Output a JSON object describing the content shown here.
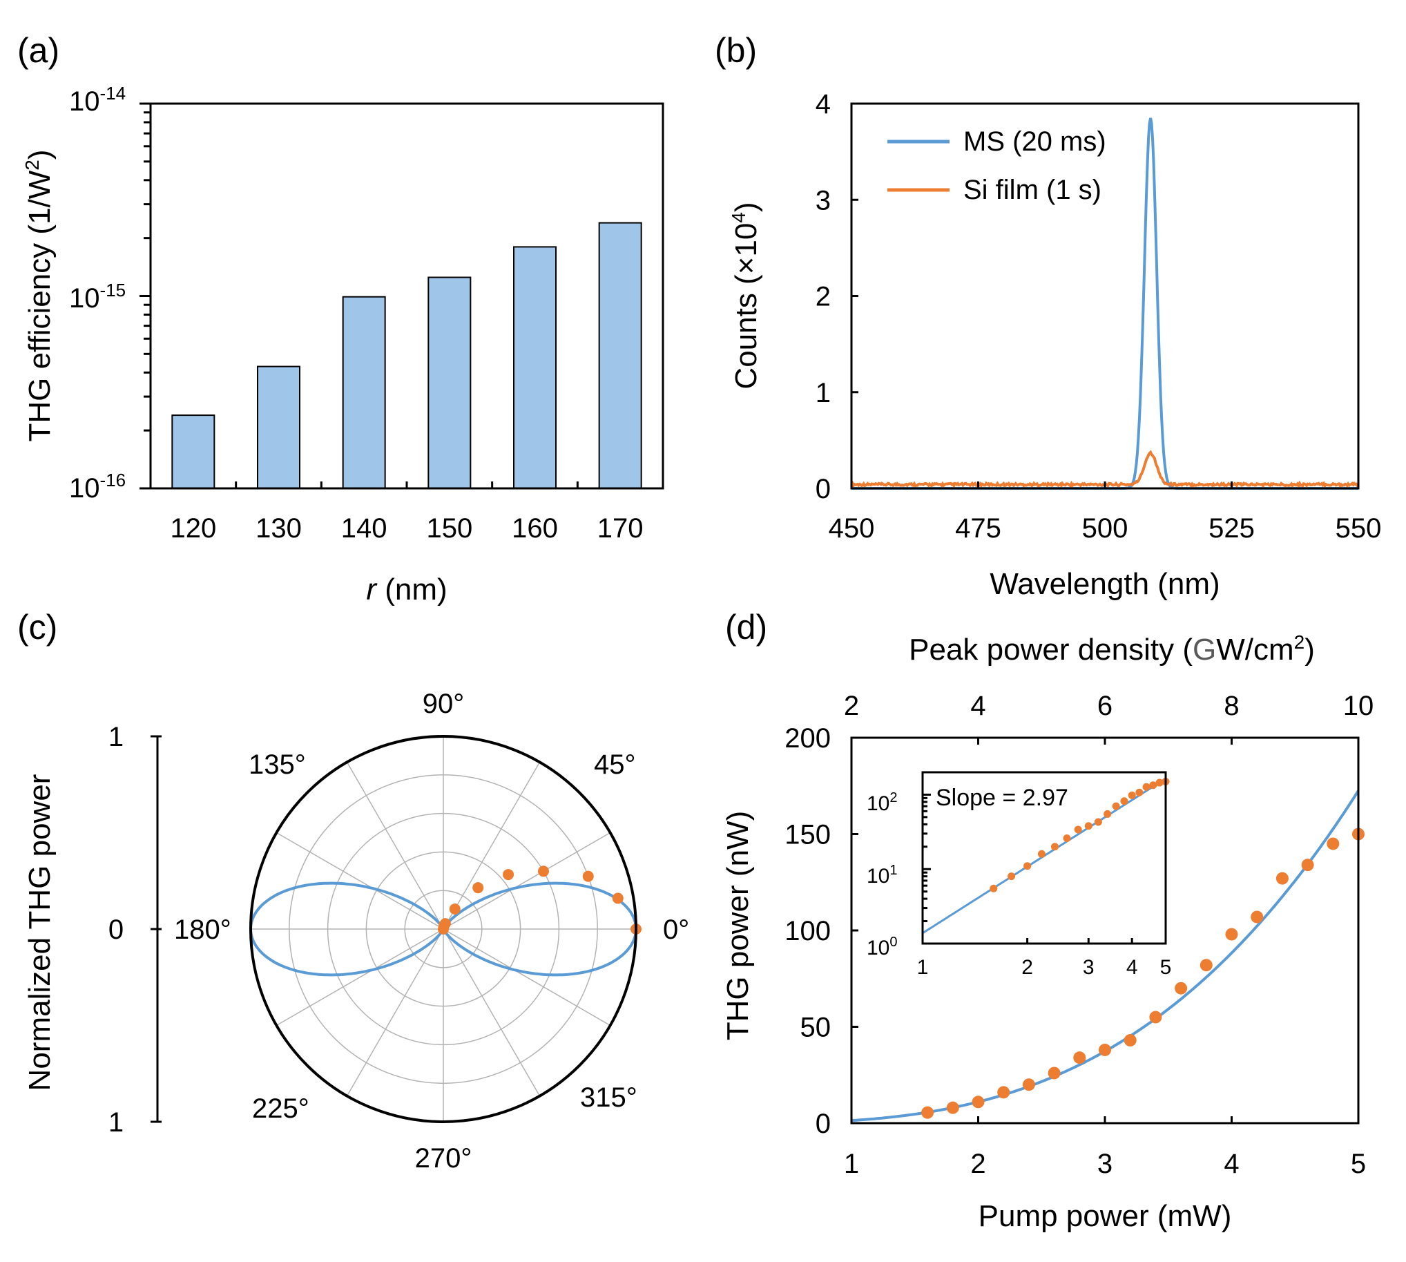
{
  "chart_data": [
    {
      "panel": "(a)",
      "type": "bar",
      "scale": "log",
      "categories": [
        "120",
        "130",
        "140",
        "150",
        "160",
        "170"
      ],
      "values": [
        2.4e-16,
        4.3e-16,
        9.9e-16,
        1.25e-15,
        1.8e-15,
        2.4e-15
      ],
      "ylim": [
        1e-16,
        1e-14
      ],
      "yticks": [
        {
          "base": "10",
          "exp": "-14",
          "value": 1e-14
        },
        {
          "base": "10",
          "exp": "-15",
          "value": 1e-15
        },
        {
          "base": "10",
          "exp": "-16",
          "value": 1e-16
        }
      ],
      "ylabel": {
        "text": "THG efficiency (1/W",
        "sup": "2",
        "tail": ")"
      },
      "xlabel": {
        "italic": "r",
        "rest": " (nm)"
      },
      "bar_color": "#9fc5e8"
    },
    {
      "panel": "(b)",
      "type": "line",
      "xlim": [
        450,
        550
      ],
      "ylim": [
        0,
        4
      ],
      "xticks": [
        "450",
        "475",
        "500",
        "525",
        "550"
      ],
      "yticks": [
        "0",
        "1",
        "2",
        "3",
        "4"
      ],
      "xlabel": "Wavelength (nm)",
      "ylabel": {
        "text": "Counts (×10",
        "sup": "4",
        "tail": ")"
      },
      "series": [
        {
          "name": "MS (20 ms)",
          "color": "#5b9bd5",
          "peak_center": 509,
          "peak_height": 3.85,
          "peak_sigma": 1.2,
          "baseline": 0
        },
        {
          "name": "Si film (1 s)",
          "color": "#ed7d31",
          "peak_center": 509,
          "peak_height": 0.33,
          "peak_sigma": 1.2,
          "baseline": 0.04
        }
      ]
    },
    {
      "panel": "(c)",
      "type": "polar",
      "ylabel": "Normalized THG power",
      "radial_ticks": [
        "1",
        "0",
        "1"
      ],
      "angle_labels": [
        "0°",
        "45°",
        "90°",
        "135°",
        "180°",
        "225°",
        "270°",
        "315°"
      ],
      "fit": "cos^6(theta)",
      "fit_color": "#5b9bd5",
      "points_theta_deg": [
        0,
        10,
        20,
        30,
        40,
        50,
        60,
        70,
        80,
        90
      ],
      "points_r": [
        1.0,
        0.92,
        0.8,
        0.6,
        0.44,
        0.28,
        0.12,
        0.03,
        0.02,
        0.0
      ],
      "points_color": "#ed7d31"
    },
    {
      "panel": "(d)",
      "type": "scatter",
      "xlabel": "Pump power (mW)",
      "ylabel": "THG power (nW)",
      "xlim": [
        1,
        5
      ],
      "ylim": [
        0,
        200
      ],
      "xticks": [
        "1",
        "2",
        "3",
        "4",
        "5"
      ],
      "yticks": [
        "0",
        "50",
        "100",
        "150",
        "200"
      ],
      "top_xlabel": {
        "pre": "Peak power density (",
        "g": "G",
        "post": "W/cm",
        "sup": "2",
        "tail": ")"
      },
      "top_xlim": [
        2,
        10
      ],
      "top_xticks": [
        "2",
        "4",
        "6",
        "8",
        "10"
      ],
      "x": [
        1.6,
        1.8,
        2.0,
        2.2,
        2.4,
        2.6,
        2.8,
        3.0,
        3.2,
        3.4,
        3.6,
        3.8,
        4.0,
        4.2,
        4.4,
        4.6,
        4.8,
        5.0
      ],
      "y": [
        5.5,
        8,
        11,
        16,
        20,
        26,
        34,
        38,
        43,
        55,
        70,
        82,
        98,
        107,
        127,
        134,
        145,
        150
      ],
      "fit": {
        "type": "power",
        "coeff": 1.38,
        "exponent": 3,
        "color": "#5b9bd5"
      },
      "inset": {
        "scale": "log-log",
        "annotation": "Slope = 2.97",
        "xlim": [
          1,
          5
        ],
        "xticks": [
          "1",
          "2",
          "3",
          "4",
          "5"
        ],
        "ylim": [
          1,
          200
        ],
        "yticks": [
          {
            "base": "10",
            "exp": "0",
            "value": 1
          },
          {
            "base": "10",
            "exp": "1",
            "value": 10
          },
          {
            "base": "10",
            "exp": "2",
            "value": 100
          }
        ],
        "fit_slope": 2.97
      }
    }
  ]
}
